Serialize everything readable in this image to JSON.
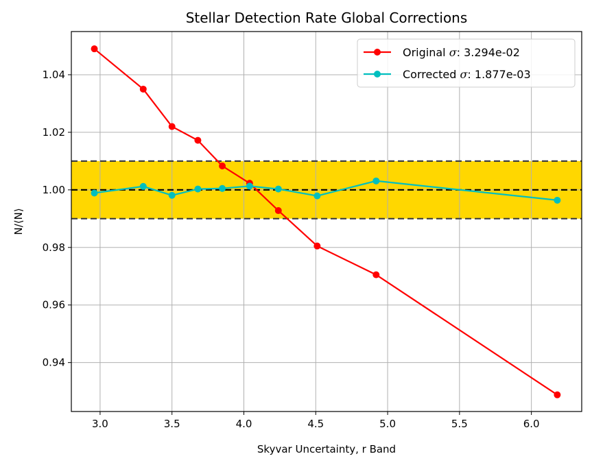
{
  "chart_data": {
    "type": "line",
    "title": "Stellar Detection Rate Global Corrections",
    "xlabel": "Skyvar Uncertainty, r Band",
    "ylabel": "N/⟨N⟩",
    "xlim": [
      2.8,
      6.35
    ],
    "ylim": [
      0.923,
      1.055
    ],
    "xticks": [
      3.0,
      3.5,
      4.0,
      4.5,
      5.0,
      5.5,
      6.0
    ],
    "xtick_labels": [
      "3.0",
      "3.5",
      "4.0",
      "4.5",
      "5.0",
      "5.5",
      "6.0"
    ],
    "yticks": [
      0.94,
      0.96,
      0.98,
      1.0,
      1.02,
      1.04
    ],
    "ytick_labels": [
      "0.94",
      "0.96",
      "0.98",
      "1.00",
      "1.02",
      "1.04"
    ],
    "grid": true,
    "legend_position": "top-right",
    "band": {
      "lower": 0.99,
      "upper": 1.01,
      "color": "#FFD700"
    },
    "reference_line": 1.0,
    "series": [
      {
        "name": "Original σ: 3.294e-02",
        "legend_prefix": "Original ",
        "legend_sigma": "σ",
        "legend_suffix": ": 3.294e-02",
        "color": "#FF0000",
        "x": [
          2.96,
          3.3,
          3.5,
          3.68,
          3.85,
          4.04,
          4.24,
          4.51,
          4.92,
          6.18
        ],
        "y": [
          1.049,
          1.035,
          1.022,
          1.0172,
          1.0083,
          1.0023,
          0.9928,
          0.9805,
          0.9705,
          0.9288
        ]
      },
      {
        "name": "Corrected σ: 1.877e-03",
        "legend_prefix": "Corrected ",
        "legend_sigma": "σ",
        "legend_suffix": ": 1.877e-03",
        "color": "#00BFBF",
        "x": [
          2.96,
          3.3,
          3.5,
          3.68,
          3.85,
          4.04,
          4.24,
          4.51,
          4.92,
          6.18
        ],
        "y": [
          0.9989,
          1.0012,
          0.9981,
          1.0003,
          1.0005,
          1.0013,
          1.0003,
          0.9979,
          1.0031,
          0.9964
        ]
      }
    ]
  }
}
